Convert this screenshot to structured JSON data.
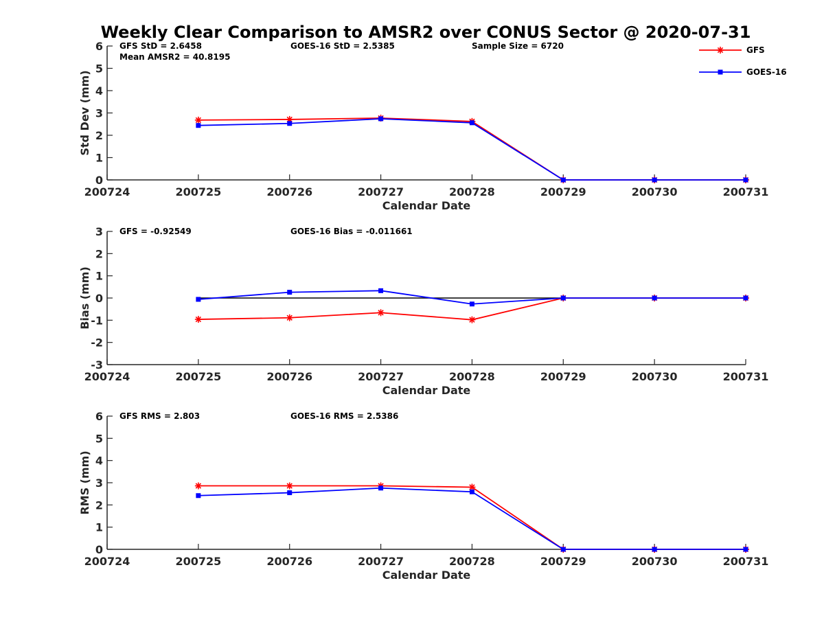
{
  "figure": {
    "title": "Weekly Clear Comparison to AMSR2 over CONUS Sector @ 2020-07-31"
  },
  "legend": {
    "placement": "top-right",
    "entries": [
      {
        "name": "GFS",
        "color": "#ff0000",
        "marker": "asterisk"
      },
      {
        "name": "GOES-16",
        "color": "#0000ff",
        "marker": "square"
      }
    ]
  },
  "chart_data": [
    {
      "type": "line",
      "xlabel": "Calendar Date",
      "ylabel": "Std Dev (mm)",
      "x_ticks": [
        "200724",
        "200725",
        "200726",
        "200727",
        "200728",
        "200729",
        "200730",
        "200731"
      ],
      "ylim": [
        0,
        6
      ],
      "y_ticks": [
        "0",
        "1",
        "2",
        "3",
        "4",
        "5",
        "6"
      ],
      "zero_line": false,
      "annotations": [
        {
          "text": "GFS StD = 2.6458",
          "col": 0,
          "row": 0
        },
        {
          "text": "GOES-16 StD = 2.5385",
          "col": 1,
          "row": 0
        },
        {
          "text": "Sample Size = 6720",
          "col": 2,
          "row": 0
        },
        {
          "text": "Mean AMSR2 = 40.8195",
          "col": 0,
          "row": 1
        }
      ],
      "series": [
        {
          "name": "GFS",
          "x": [
            "200725",
            "200726",
            "200727",
            "200728",
            "200729",
            "200730",
            "200731"
          ],
          "values": [
            2.68,
            2.71,
            2.77,
            2.62,
            0,
            0,
            0
          ]
        },
        {
          "name": "GOES-16",
          "x": [
            "200725",
            "200726",
            "200727",
            "200728",
            "200729",
            "200730",
            "200731"
          ],
          "values": [
            2.44,
            2.53,
            2.74,
            2.56,
            0,
            0,
            0
          ]
        }
      ]
    },
    {
      "type": "line",
      "xlabel": "Calendar Date",
      "ylabel": "Bias (mm)",
      "x_ticks": [
        "200724",
        "200725",
        "200726",
        "200727",
        "200728",
        "200729",
        "200730",
        "200731"
      ],
      "ylim": [
        -3,
        3
      ],
      "y_ticks": [
        "-3",
        "-2",
        "-1",
        "0",
        "1",
        "2",
        "3"
      ],
      "zero_line": true,
      "annotations": [
        {
          "text": "GFS = -0.92549",
          "col": 0,
          "row": 0
        },
        {
          "text": "GOES-16 Bias  = -0.011661",
          "col": 1,
          "row": 0
        }
      ],
      "series": [
        {
          "name": "GFS",
          "x": [
            "200725",
            "200726",
            "200727",
            "200728",
            "200729",
            "200730",
            "200731"
          ],
          "values": [
            -0.96,
            -0.89,
            -0.66,
            -0.98,
            0,
            0,
            0
          ]
        },
        {
          "name": "GOES-16",
          "x": [
            "200725",
            "200726",
            "200727",
            "200728",
            "200729",
            "200730",
            "200731"
          ],
          "values": [
            -0.06,
            0.26,
            0.33,
            -0.27,
            0,
            0,
            0
          ]
        }
      ]
    },
    {
      "type": "line",
      "xlabel": "Calendar Date",
      "ylabel": "RMS (mm)",
      "x_ticks": [
        "200724",
        "200725",
        "200726",
        "200727",
        "200728",
        "200729",
        "200730",
        "200731"
      ],
      "ylim": [
        0,
        6
      ],
      "y_ticks": [
        "0",
        "1",
        "2",
        "3",
        "4",
        "5",
        "6"
      ],
      "zero_line": false,
      "annotations": [
        {
          "text": "GFS RMS = 2.803",
          "col": 0,
          "row": 0
        },
        {
          "text": "GOES-16 RMS = 2.5386",
          "col": 1,
          "row": 0
        }
      ],
      "series": [
        {
          "name": "GFS",
          "x": [
            "200725",
            "200726",
            "200727",
            "200728",
            "200729",
            "200730",
            "200731"
          ],
          "values": [
            2.86,
            2.86,
            2.86,
            2.8,
            0,
            0,
            0
          ]
        },
        {
          "name": "GOES-16",
          "x": [
            "200725",
            "200726",
            "200727",
            "200728",
            "200729",
            "200730",
            "200731"
          ],
          "values": [
            2.42,
            2.55,
            2.76,
            2.59,
            0,
            0,
            0
          ]
        }
      ]
    }
  ]
}
